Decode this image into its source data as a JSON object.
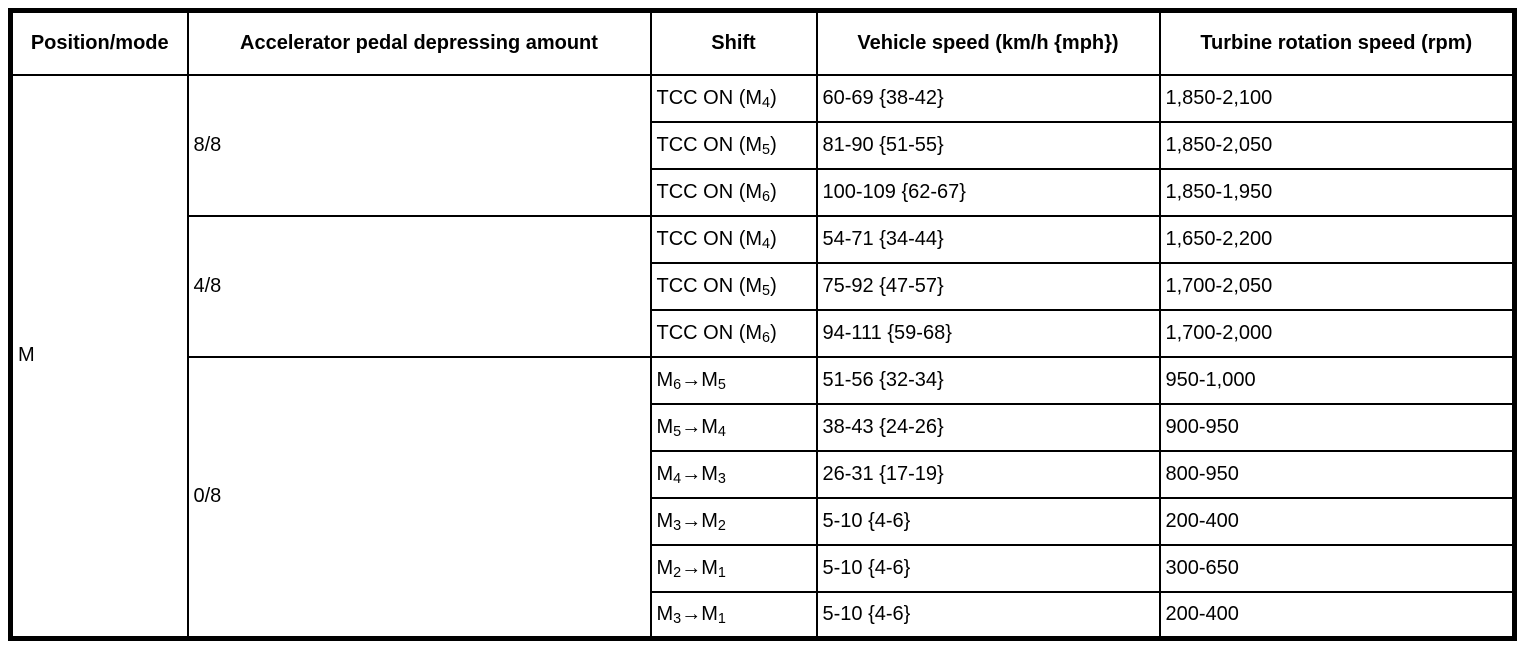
{
  "table": {
    "title_semantic": "manual-mode-shift-speed-specifications",
    "headers": [
      "Position/mode",
      "Accelerator pedal depressing amount",
      "Shift",
      "Vehicle speed (km/h {mph})",
      "Turbine rotation speed (rpm)"
    ],
    "position_mode": "M",
    "groups": [
      {
        "pedal": "8/8",
        "rows": [
          {
            "shift": "TCC ON (M~4~)",
            "speed": "60-69 {38-42}",
            "turbine": "1,850-2,100"
          },
          {
            "shift": "TCC ON (M~5~)",
            "speed": "81-90 {51-55}",
            "turbine": "1,850-2,050"
          },
          {
            "shift": "TCC ON (M~6~)",
            "speed": "100-109 {62-67}",
            "turbine": "1,850-1,950"
          }
        ]
      },
      {
        "pedal": "4/8",
        "rows": [
          {
            "shift": "TCC ON (M~4~)",
            "speed": "54-71 {34-44}",
            "turbine": "1,650-2,200"
          },
          {
            "shift": "TCC ON (M~5~)",
            "speed": "75-92 {47-57}",
            "turbine": "1,700-2,050"
          },
          {
            "shift": "TCC ON (M~6~)",
            "speed": "94-111 {59-68}",
            "turbine": "1,700-2,000"
          }
        ]
      },
      {
        "pedal": "0/8",
        "rows": [
          {
            "shift": "M~6~→M~5~",
            "speed": "51-56 {32-34}",
            "turbine": "950-1,000"
          },
          {
            "shift": "M~5~→M~4~",
            "speed": "38-43 {24-26}",
            "turbine": "900-950"
          },
          {
            "shift": "M~4~→M~3~",
            "speed": "26-31 {17-19}",
            "turbine": "800-950"
          },
          {
            "shift": "M~3~→M~2~",
            "speed": "5-10 {4-6}",
            "turbine": "200-400"
          },
          {
            "shift": "M~2~→M~1~",
            "speed": "5-10 {4-6}",
            "turbine": "300-650"
          },
          {
            "shift": "M~3~→M~1~",
            "speed": "5-10 {4-6}",
            "turbine": "200-400"
          }
        ]
      }
    ]
  }
}
